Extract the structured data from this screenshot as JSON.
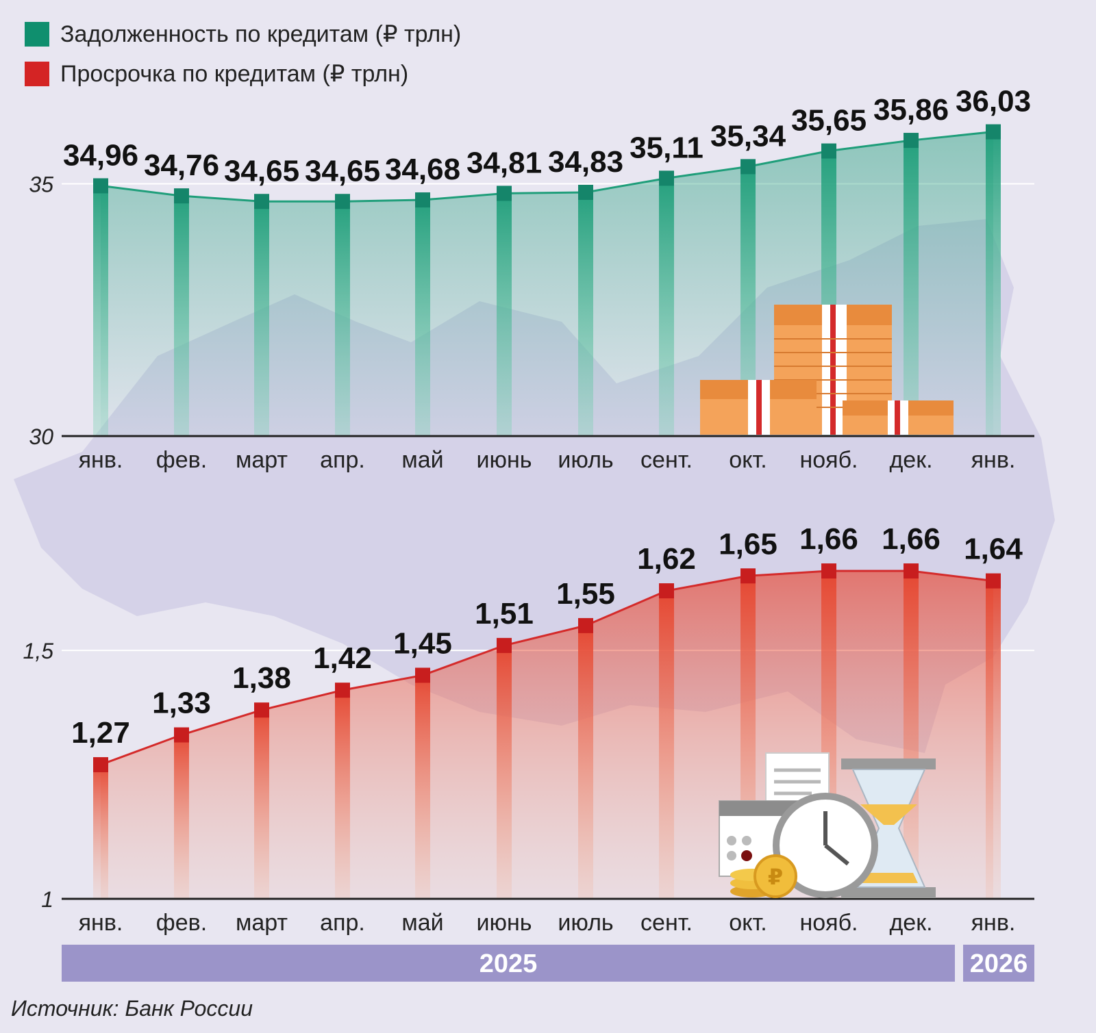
{
  "legend": [
    {
      "label": "Задолженность по кредитам (₽ трлн)",
      "color": "#0f8f6e"
    },
    {
      "label": "Просрочка по кредитам (₽ трлн)",
      "color": "#d42424"
    }
  ],
  "source": "Источник: Банк России",
  "colors": {
    "debt": "#1f9e7a",
    "overdue": "#d42a2a",
    "year_bar": "#9b94c9",
    "background": "#e8e6f1",
    "map": "#cfcbe4"
  },
  "icons": [
    "ruble-banknote-stacks-icon",
    "calendar-icon",
    "clock-icon",
    "hourglass-icon",
    "ruble-coins-icon",
    "receipt-icon"
  ],
  "chart_data": [
    {
      "type": "area",
      "name": "debt",
      "categories": [
        "янв.",
        "фев.",
        "март",
        "апр.",
        "май",
        "июнь",
        "июль",
        "сент.",
        "окт.",
        "нояб.",
        "дек.",
        "янв."
      ],
      "series": [
        {
          "name": "Задолженность по кредитам (₽ трлн)",
          "values": [
            34.96,
            34.76,
            34.65,
            34.65,
            34.68,
            34.81,
            34.83,
            35.11,
            35.34,
            35.65,
            35.86,
            36.03
          ]
        }
      ],
      "value_labels": [
        "34,96",
        "34,76",
        "34,65",
        "34,65",
        "34,68",
        "34,81",
        "34,83",
        "35,11",
        "35,34",
        "35,65",
        "35,86",
        "36,03"
      ],
      "ylim": [
        30,
        36.2
      ],
      "yticks": [
        30,
        35
      ],
      "ytick_labels": [
        "30",
        "35"
      ],
      "grid": true
    },
    {
      "type": "area",
      "name": "overdue",
      "categories": [
        "янв.",
        "фев.",
        "март",
        "апр.",
        "май",
        "июнь",
        "июль",
        "сент.",
        "окт.",
        "нояб.",
        "дек.",
        "янв."
      ],
      "series": [
        {
          "name": "Просрочка по кредитам (₽ трлн)",
          "values": [
            1.27,
            1.33,
            1.38,
            1.42,
            1.45,
            1.51,
            1.55,
            1.62,
            1.65,
            1.66,
            1.66,
            1.64
          ]
        }
      ],
      "value_labels": [
        "1,27",
        "1,33",
        "1,38",
        "1,42",
        "1,45",
        "1,51",
        "1,55",
        "1,62",
        "1,65",
        "1,66",
        "1,66",
        "1,64"
      ],
      "ylim": [
        1,
        1.7
      ],
      "yticks": [
        1,
        1.5
      ],
      "ytick_labels": [
        "1",
        "1,5"
      ],
      "grid": true
    }
  ],
  "year_bands": [
    {
      "label": "2025",
      "count": 11
    },
    {
      "label": "2026",
      "count": 1
    }
  ]
}
